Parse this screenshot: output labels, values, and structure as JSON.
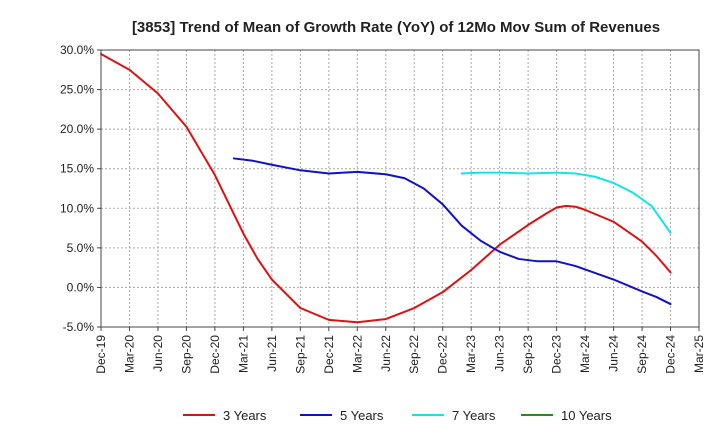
{
  "chart_data": {
    "type": "line",
    "title": "[3853]  Trend of Mean of Growth Rate (YoY) of 12Mo Mov Sum of Revenues",
    "xlabel": "",
    "ylabel": "",
    "ylim": [
      -5,
      30
    ],
    "yticks": [
      -5,
      0,
      5,
      10,
      15,
      20,
      25,
      30
    ],
    "ytick_labels": [
      "-5.0%",
      "0.0%",
      "5.0%",
      "10.0%",
      "15.0%",
      "20.0%",
      "25.0%",
      "30.0%"
    ],
    "x_start": "Dec-19",
    "x_months": 63,
    "xticks": [
      0,
      3,
      6,
      9,
      12,
      15,
      18,
      21,
      24,
      27,
      30,
      33,
      36,
      39,
      42,
      45,
      48,
      51,
      54,
      57,
      60,
      63
    ],
    "xtick_labels": [
      "Dec-19",
      "Mar-20",
      "Jun-20",
      "Sep-20",
      "Dec-20",
      "Mar-21",
      "Jun-21",
      "Sep-21",
      "Dec-21",
      "Mar-22",
      "Jun-22",
      "Sep-22",
      "Dec-22",
      "Mar-23",
      "Jun-23",
      "Sep-23",
      "Dec-23",
      "Mar-24",
      "Jun-24",
      "Sep-24",
      "Dec-24",
      "Mar-25"
    ],
    "grid": true,
    "legend_position": "bottom",
    "series": [
      {
        "name": "3 Years",
        "color": "#dd1111",
        "points": [
          [
            0,
            29.5
          ],
          [
            3,
            27.5
          ],
          [
            6,
            24.5
          ],
          [
            9,
            20.3
          ],
          [
            12,
            14.2
          ],
          [
            15,
            6.8
          ],
          [
            16.5,
            3.6
          ],
          [
            18,
            1.0
          ],
          [
            21,
            -2.6
          ],
          [
            24,
            -4.1
          ],
          [
            27,
            -4.4
          ],
          [
            30,
            -4.0
          ],
          [
            33,
            -2.6
          ],
          [
            36,
            -0.6
          ],
          [
            39,
            2.2
          ],
          [
            42,
            5.4
          ],
          [
            45,
            7.9
          ],
          [
            47,
            9.4
          ],
          [
            48,
            10.1
          ],
          [
            49,
            10.3
          ],
          [
            50,
            10.2
          ],
          [
            51,
            9.8
          ],
          [
            54,
            8.3
          ],
          [
            57,
            5.8
          ],
          [
            58.5,
            4.0
          ],
          [
            60,
            1.9
          ]
        ]
      },
      {
        "name": "5 Years",
        "color": "#1111cc",
        "points": [
          [
            14,
            16.3
          ],
          [
            16,
            16.0
          ],
          [
            18,
            15.5
          ],
          [
            21,
            14.8
          ],
          [
            24,
            14.4
          ],
          [
            27,
            14.6
          ],
          [
            30,
            14.3
          ],
          [
            32,
            13.8
          ],
          [
            34,
            12.5
          ],
          [
            36,
            10.5
          ],
          [
            38,
            7.8
          ],
          [
            40,
            5.9
          ],
          [
            42,
            4.5
          ],
          [
            44,
            3.6
          ],
          [
            46,
            3.3
          ],
          [
            48,
            3.3
          ],
          [
            50,
            2.7
          ],
          [
            54,
            1.0
          ],
          [
            57,
            -0.5
          ],
          [
            58.5,
            -1.2
          ],
          [
            60,
            -2.1
          ]
        ]
      },
      {
        "name": "7 Years",
        "color": "#11e5e5",
        "points": [
          [
            38,
            14.4
          ],
          [
            40,
            14.5
          ],
          [
            42,
            14.5
          ],
          [
            45,
            14.4
          ],
          [
            48,
            14.5
          ],
          [
            50,
            14.4
          ],
          [
            52,
            14.0
          ],
          [
            54,
            13.2
          ],
          [
            56,
            12.0
          ],
          [
            58,
            10.3
          ],
          [
            60,
            6.9
          ]
        ]
      },
      {
        "name": "10 Years",
        "color": "#228b22",
        "points": []
      }
    ]
  }
}
